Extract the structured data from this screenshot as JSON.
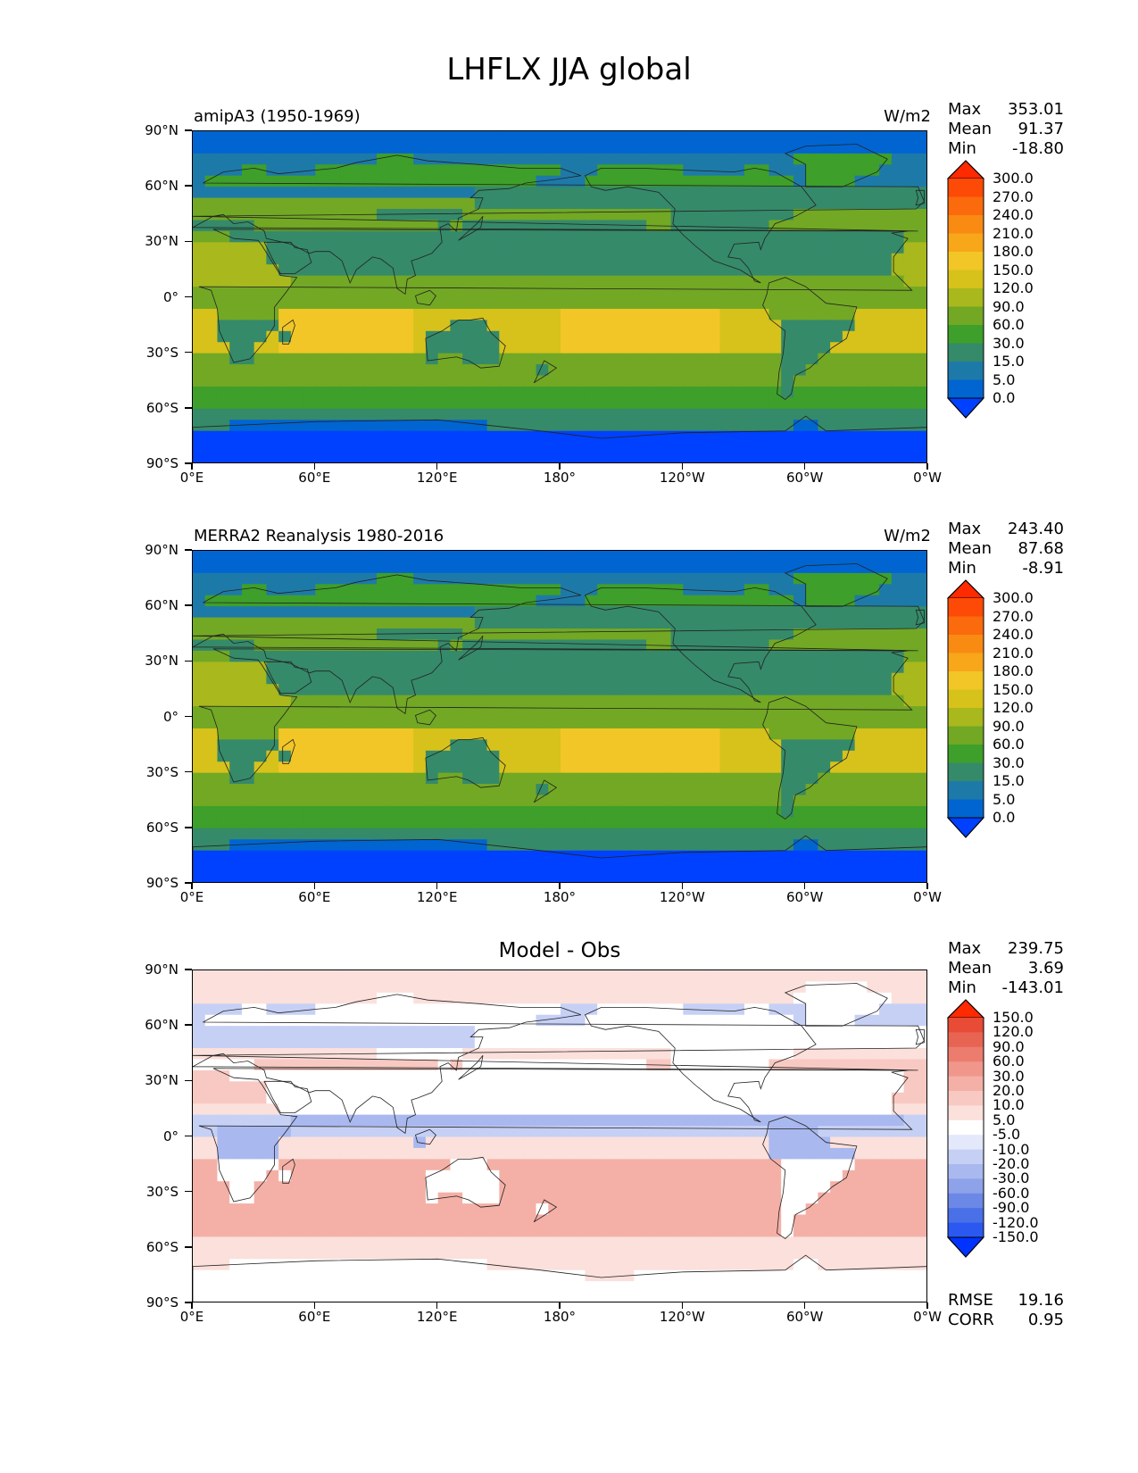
{
  "figure_title": "LHFLX JJA global",
  "x_ticks": [
    "0°E",
    "60°E",
    "120°E",
    "180°",
    "120°W",
    "60°W",
    "0°W"
  ],
  "y_ticks": [
    "90°N",
    "60°N",
    "30°N",
    "0°",
    "30°S",
    "60°S",
    "90°S"
  ],
  "chart_data": [
    {
      "type": "heatmap",
      "title": "amipA3 (1950-1969)",
      "units": "W/m2",
      "stats": {
        "max_label": "Max",
        "max": "353.01",
        "mean_label": "Mean",
        "mean": "91.37",
        "min_label": "Min",
        "min": "-18.80"
      },
      "colorbar_levels": [
        "300.0",
        "270.0",
        "240.0",
        "210.0",
        "180.0",
        "150.0",
        "120.0",
        "90.0",
        "60.0",
        "30.0",
        "15.0",
        "5.0",
        "0.0"
      ],
      "colors": [
        "#0041ff",
        "#0065d1",
        "#1d7aa8",
        "#358a6a",
        "#3e9f2a",
        "#72a824",
        "#a8b81d",
        "#d6c21b",
        "#f2c626",
        "#f8a61a",
        "#f98a12",
        "#fb6a0c",
        "#fd4a06",
        "#ff2a00"
      ],
      "xlim": [
        0,
        360
      ],
      "ylim": [
        -90,
        90
      ]
    },
    {
      "type": "heatmap",
      "title": "MERRA2 Reanalysis 1980-2016",
      "units": "W/m2",
      "stats": {
        "max_label": "Max",
        "max": "243.40",
        "mean_label": "Mean",
        "mean": "87.68",
        "min_label": "Min",
        "min": "-8.91"
      },
      "colorbar_levels": [
        "300.0",
        "270.0",
        "240.0",
        "210.0",
        "180.0",
        "150.0",
        "120.0",
        "90.0",
        "60.0",
        "30.0",
        "15.0",
        "5.0",
        "0.0"
      ],
      "colors": [
        "#0041ff",
        "#0065d1",
        "#1d7aa8",
        "#358a6a",
        "#3e9f2a",
        "#72a824",
        "#a8b81d",
        "#d6c21b",
        "#f2c626",
        "#f8a61a",
        "#f98a12",
        "#fb6a0c",
        "#fd4a06",
        "#ff2a00"
      ],
      "xlim": [
        0,
        360
      ],
      "ylim": [
        -90,
        90
      ]
    },
    {
      "type": "heatmap",
      "title": "Model - Obs",
      "units": "",
      "stats": {
        "max_label": "Max",
        "max": "239.75",
        "mean_label": "Mean",
        "mean": "3.69",
        "min_label": "Min",
        "min": "-143.01"
      },
      "colorbar_levels": [
        "150.0",
        "120.0",
        "90.0",
        "60.0",
        "30.0",
        "20.0",
        "10.0",
        "5.0",
        "-5.0",
        "-10.0",
        "-20.0",
        "-30.0",
        "-60.0",
        "-90.0",
        "-120.0",
        "-150.0"
      ],
      "colors": [
        "#0033ff",
        "#2a58f0",
        "#4a70e8",
        "#6b88e6",
        "#8ea2ea",
        "#a9b8ef",
        "#c6d0f5",
        "#e3e8fb",
        "#ffffff",
        "#fbe0dc",
        "#f8c9c2",
        "#f4b0a6",
        "#f0968a",
        "#ec7d6e",
        "#e86452",
        "#e84b36",
        "#ff2a00"
      ],
      "rmse_label": "RMSE",
      "rmse": "19.16",
      "corr_label": "CORR",
      "corr": "0.95",
      "xlim": [
        0,
        360
      ],
      "ylim": [
        -90,
        90
      ]
    }
  ]
}
